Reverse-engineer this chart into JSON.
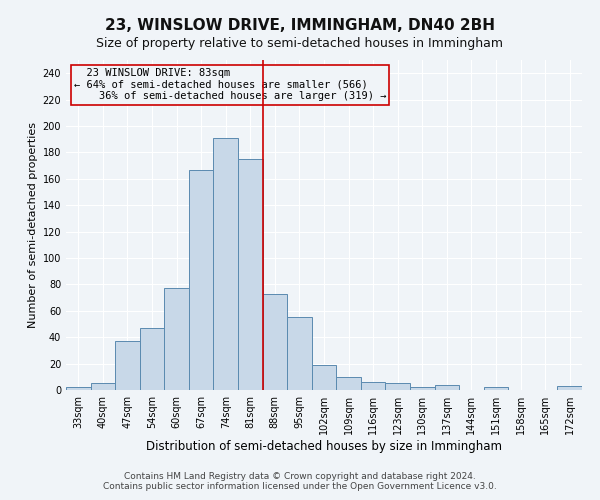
{
  "title": "23, WINSLOW DRIVE, IMMINGHAM, DN40 2BH",
  "subtitle": "Size of property relative to semi-detached houses in Immingham",
  "xlabel": "Distribution of semi-detached houses by size in Immingham",
  "ylabel": "Number of semi-detached properties",
  "categories": [
    "33sqm",
    "40sqm",
    "47sqm",
    "54sqm",
    "60sqm",
    "67sqm",
    "74sqm",
    "81sqm",
    "88sqm",
    "95sqm",
    "102sqm",
    "109sqm",
    "116sqm",
    "123sqm",
    "130sqm",
    "137sqm",
    "144sqm",
    "151sqm",
    "158sqm",
    "165sqm",
    "172sqm"
  ],
  "values": [
    2,
    5,
    37,
    47,
    77,
    167,
    191,
    175,
    73,
    55,
    19,
    10,
    6,
    5,
    2,
    4,
    0,
    2,
    0,
    0,
    3
  ],
  "bar_color": "#c8d8e8",
  "bar_edge_color": "#5a8ab0",
  "subject_label": "23 WINSLOW DRIVE: 83sqm",
  "pct_smaller": 64,
  "n_smaller": 566,
  "pct_larger": 36,
  "n_larger": 319,
  "vline_color": "#cc0000",
  "annotation_box_color": "#cc0000",
  "ylim": [
    0,
    250
  ],
  "yticks": [
    0,
    20,
    40,
    60,
    80,
    100,
    120,
    140,
    160,
    180,
    200,
    220,
    240
  ],
  "footer_line1": "Contains HM Land Registry data © Crown copyright and database right 2024.",
  "footer_line2": "Contains public sector information licensed under the Open Government Licence v3.0.",
  "bg_color": "#f0f4f8",
  "grid_color": "#ffffff",
  "title_fontsize": 11,
  "subtitle_fontsize": 9,
  "xlabel_fontsize": 8.5,
  "ylabel_fontsize": 8,
  "tick_fontsize": 7,
  "annotation_fontsize": 7.5,
  "footer_fontsize": 6.5
}
